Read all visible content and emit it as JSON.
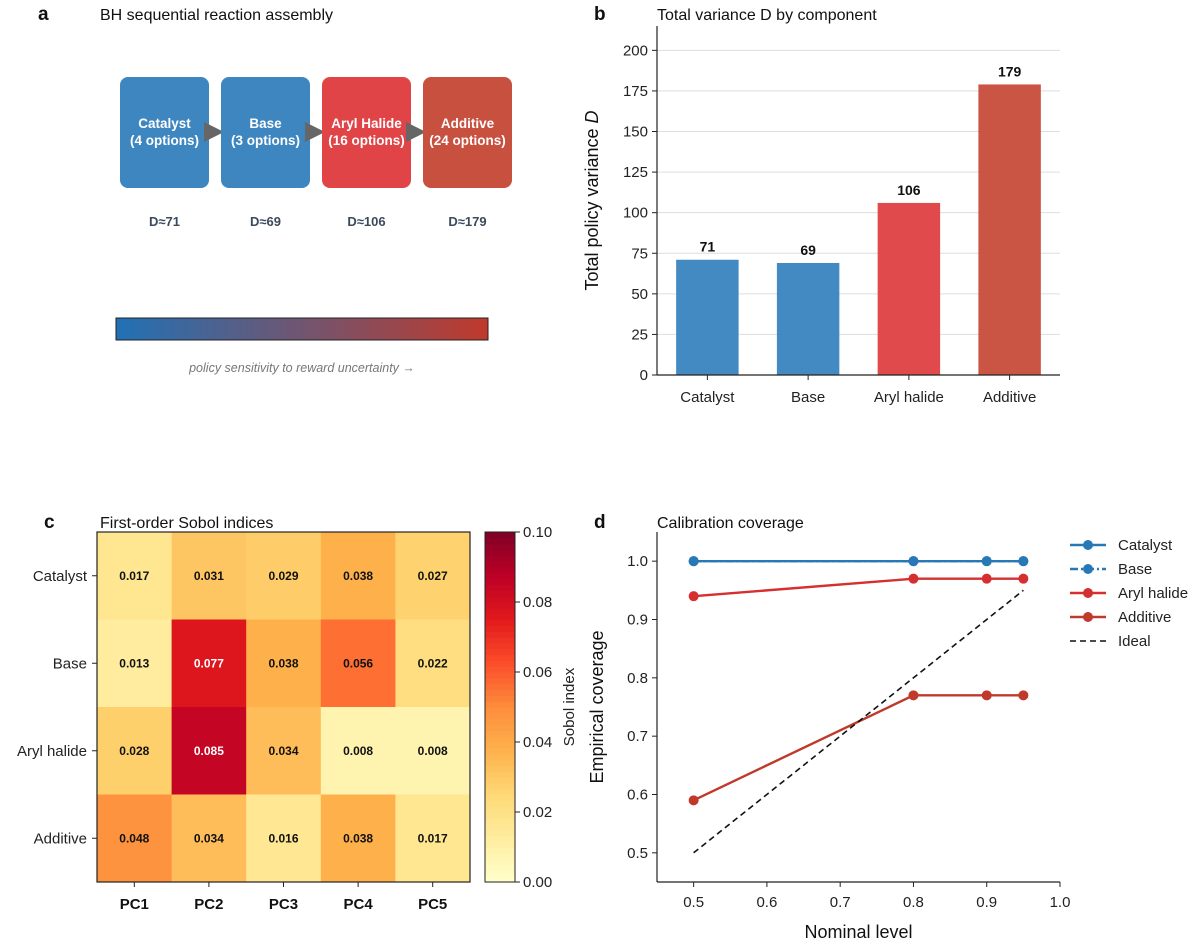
{
  "panels": {
    "a": {
      "letter": "a",
      "title": "BH sequential reaction assembly",
      "boxes": [
        {
          "name": "Catalyst",
          "options": "(4 options)",
          "d_label": "D≈71",
          "color": "#3d86c0"
        },
        {
          "name": "Base",
          "options": "(3 options)",
          "d_label": "D≈69",
          "color": "#3d86c0"
        },
        {
          "name": "Aryl Halide",
          "options": "(16 options)",
          "d_label": "D≈106",
          "color": "#e04446"
        },
        {
          "name": "Additive",
          "options": "(24 options)",
          "d_label": "D≈179",
          "color": "#c8503f"
        }
      ],
      "gradient_start": "#2171b5",
      "gradient_end": "#c0392b",
      "caption": "policy sensitivity to reward uncertainty →"
    },
    "b": {
      "letter": "b",
      "title": "Total variance D by component"
    },
    "c": {
      "letter": "c",
      "title": "First-order Sobol indices"
    },
    "d": {
      "letter": "d",
      "title": "Calibration coverage"
    }
  },
  "chart_data": [
    {
      "type": "bar",
      "panel": "b",
      "title": "Total variance D by component",
      "categories": [
        "Catalyst",
        "Base",
        "Aryl halide",
        "Additive"
      ],
      "values": [
        71,
        69,
        106,
        179
      ],
      "value_labels": [
        "71",
        "69",
        "106",
        "179"
      ],
      "colors": [
        "#3d86c0",
        "#3d86c0",
        "#e04446",
        "#c8503f"
      ],
      "ylabel_prefix": "Total policy variance ",
      "ylabel_var": "D",
      "ylim": [
        0,
        215
      ],
      "yticks": [
        0,
        25,
        50,
        75,
        100,
        125,
        150,
        175,
        200
      ],
      "grid": "y"
    },
    {
      "type": "heatmap",
      "panel": "c",
      "title": "First-order Sobol indices",
      "rows": [
        "Catalyst",
        "Base",
        "Aryl halide",
        "Additive"
      ],
      "columns": [
        "PC1",
        "PC2",
        "PC3",
        "PC4",
        "PC5"
      ],
      "values": [
        [
          0.017,
          0.031,
          0.029,
          0.038,
          0.027
        ],
        [
          0.013,
          0.077,
          0.038,
          0.056,
          0.022
        ],
        [
          0.028,
          0.085,
          0.034,
          0.008,
          0.008
        ],
        [
          0.048,
          0.034,
          0.016,
          0.038,
          0.017
        ]
      ],
      "cell_labels": [
        [
          "0.017",
          "0.031",
          "0.029",
          "0.038",
          "0.027"
        ],
        [
          "0.013",
          "0.077",
          "0.038",
          "0.056",
          "0.022"
        ],
        [
          "0.028",
          "0.085",
          "0.034",
          "0.008",
          "0.008"
        ],
        [
          "0.048",
          "0.034",
          "0.016",
          "0.038",
          "0.017"
        ]
      ],
      "colorbar": {
        "label": "Sobol index",
        "range": [
          0.0,
          0.1
        ],
        "ticks": [
          "0.00",
          "0.02",
          "0.04",
          "0.06",
          "0.08",
          "0.10"
        ],
        "colormap": "YlOrRd"
      }
    },
    {
      "type": "line",
      "panel": "d",
      "title": "Calibration coverage",
      "xlabel": "Nominal level",
      "ylabel": "Empirical coverage",
      "xlim": [
        0.45,
        1.0
      ],
      "ylim": [
        0.45,
        1.05
      ],
      "xticks": [
        "0.5",
        "0.6",
        "0.7",
        "0.8",
        "0.9",
        "1.0"
      ],
      "yticks": [
        "0.5",
        "0.6",
        "0.7",
        "0.8",
        "0.9",
        "1.0"
      ],
      "series": [
        {
          "name": "Catalyst",
          "color": "#2878b5",
          "dash": "solid",
          "x": [
            0.5,
            0.8,
            0.9,
            0.95
          ],
          "y": [
            1.0,
            1.0,
            1.0,
            1.0
          ]
        },
        {
          "name": "Base",
          "color": "#2878b5",
          "dash": "dashdot",
          "x": [
            0.5,
            0.8,
            0.9,
            0.95
          ],
          "y": [
            1.0,
            1.0,
            1.0,
            1.0
          ]
        },
        {
          "name": "Aryl halide",
          "color": "#d62f2f",
          "dash": "solid",
          "x": [
            0.5,
            0.8,
            0.9,
            0.95
          ],
          "y": [
            0.94,
            0.97,
            0.97,
            0.97
          ]
        },
        {
          "name": "Additive",
          "color": "#c0392b",
          "dash": "solid",
          "x": [
            0.5,
            0.8,
            0.9,
            0.95
          ],
          "y": [
            0.59,
            0.77,
            0.77,
            0.77
          ]
        },
        {
          "name": "Ideal",
          "color": "#111111",
          "dash": "dashed",
          "markers": false,
          "x": [
            0.5,
            0.95
          ],
          "y": [
            0.5,
            0.95
          ]
        }
      ],
      "legend": "outside-right"
    }
  ]
}
